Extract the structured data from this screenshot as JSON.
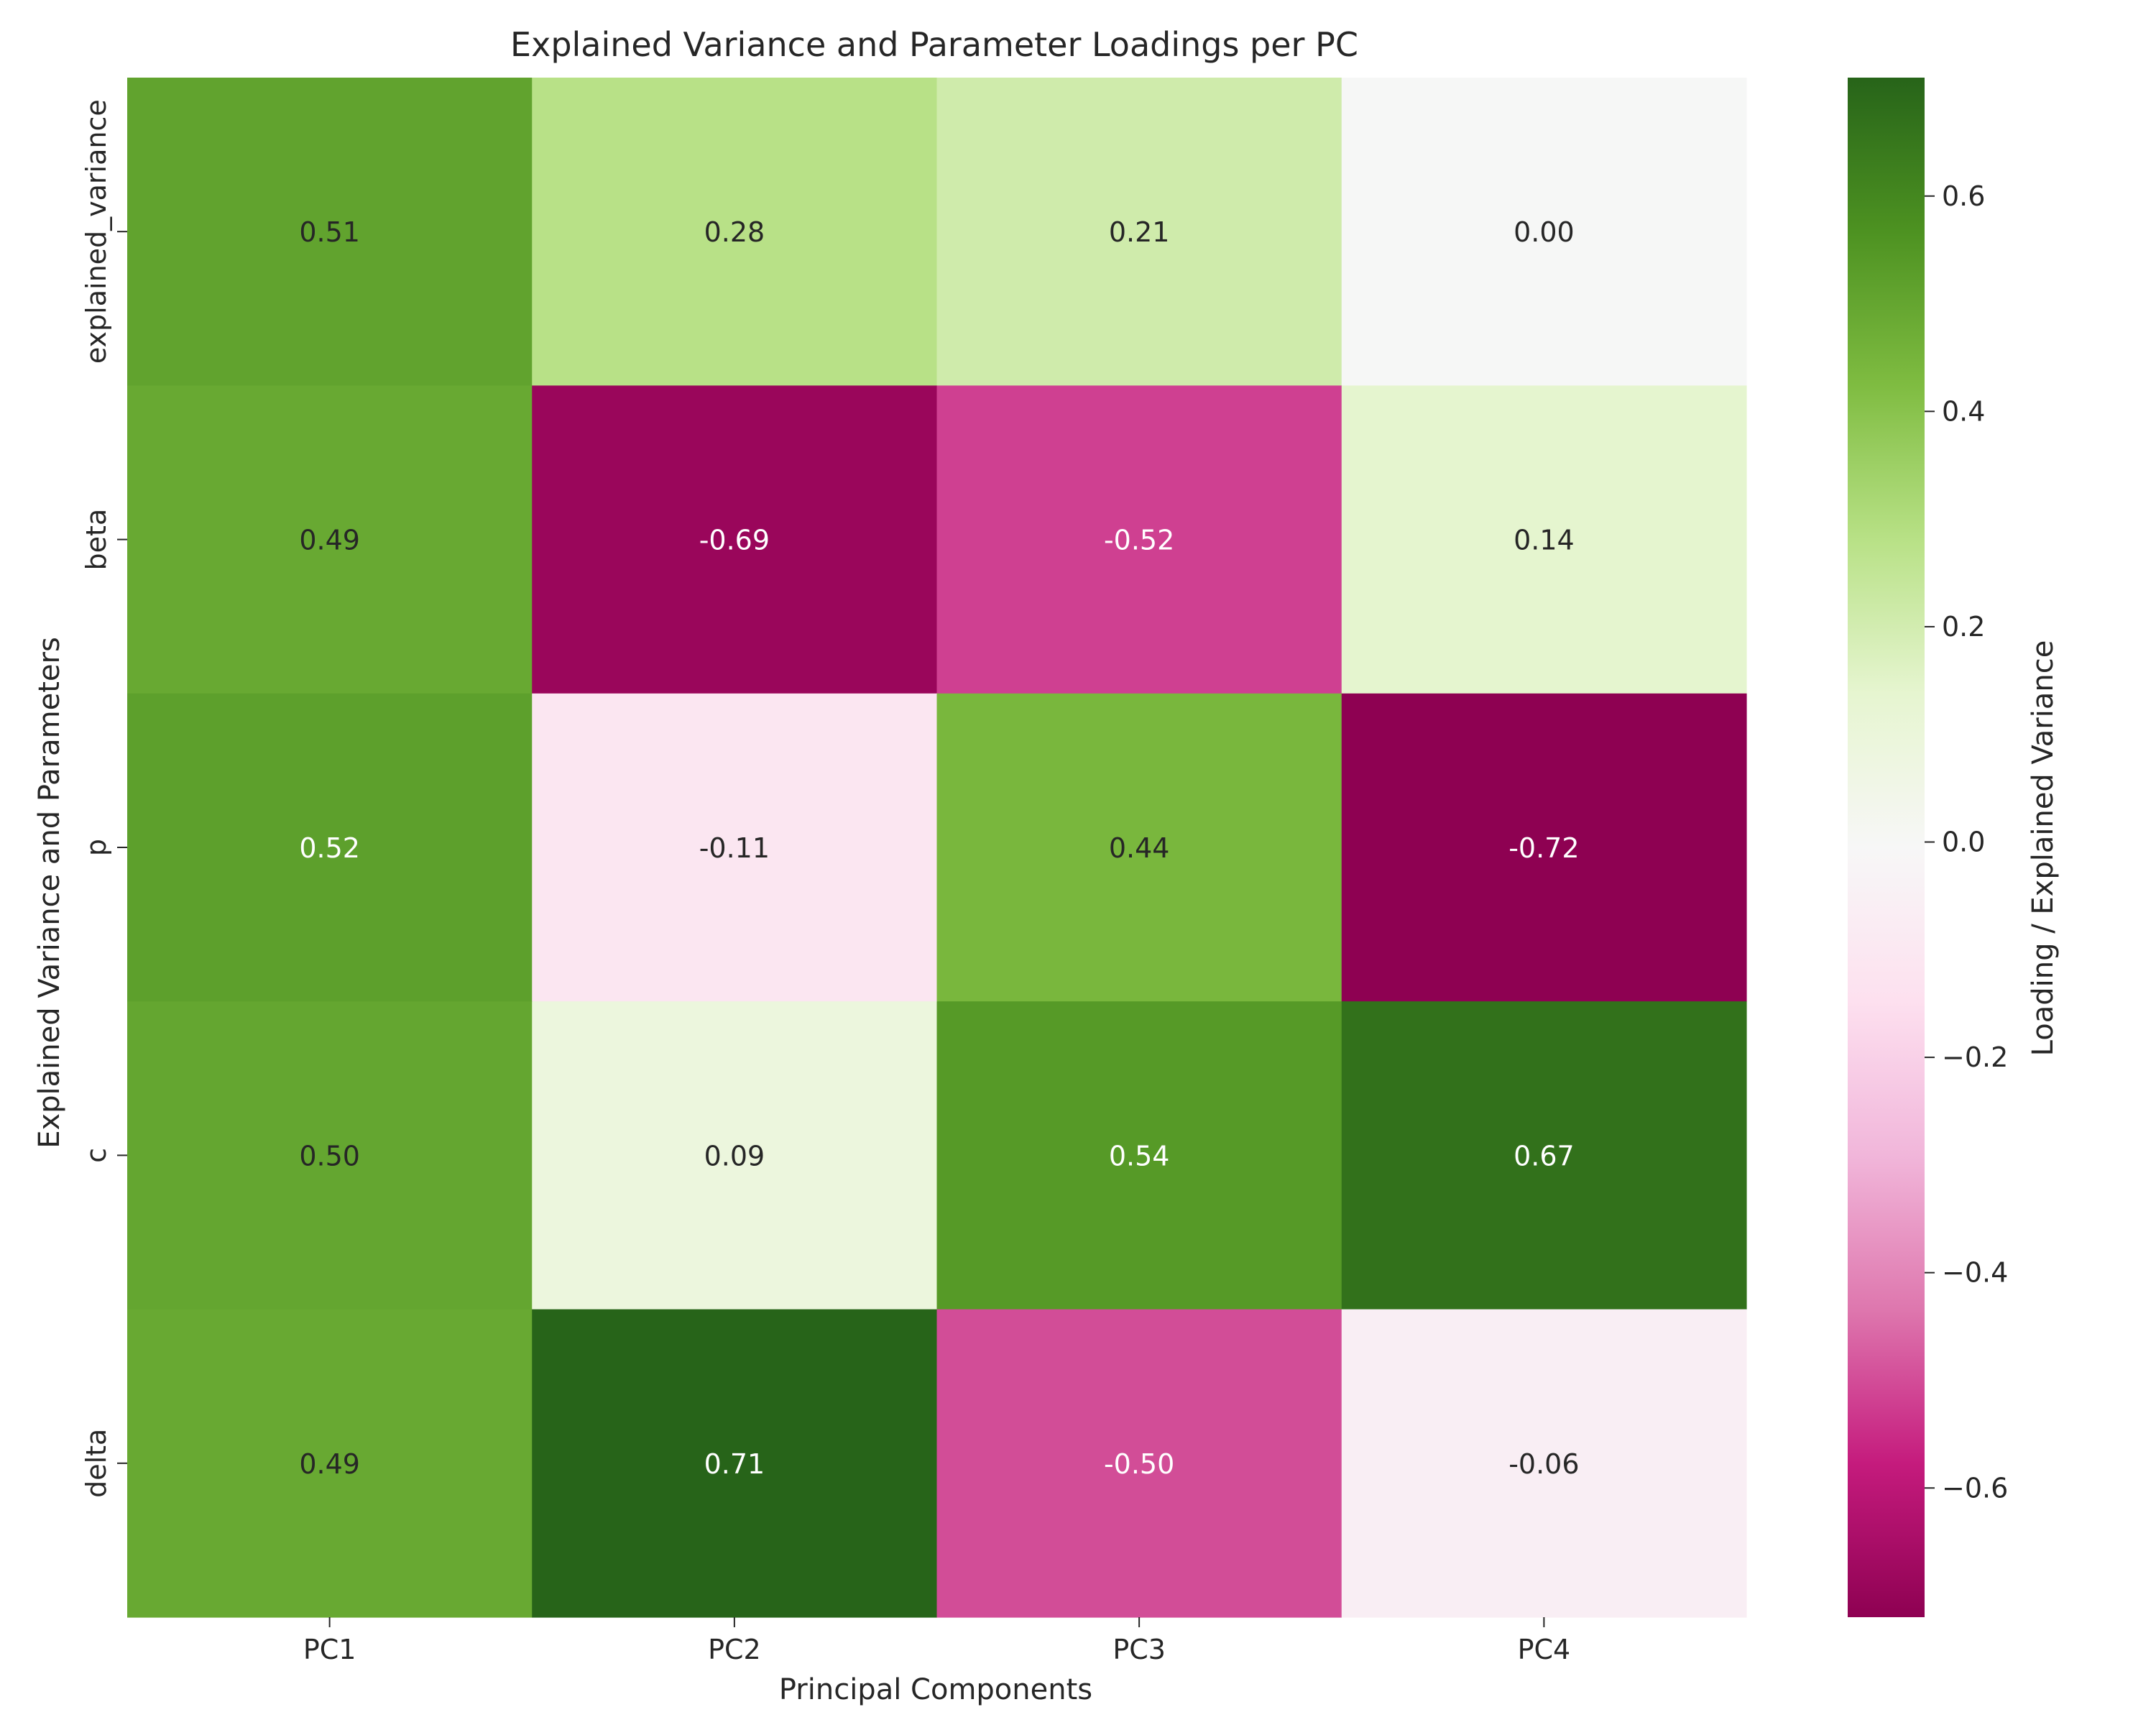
{
  "chart_data": {
    "type": "heatmap",
    "title": "Explained Variance and Parameter Loadings per PC",
    "xlabel": "Principal Components",
    "ylabel": "Explained Variance and Parameters",
    "colorbar_label": "Loading / Explained Variance",
    "columns": [
      "PC1",
      "PC2",
      "PC3",
      "PC4"
    ],
    "rows": [
      "explained_variance",
      "beta",
      "p",
      "c",
      "delta"
    ],
    "values": [
      [
        0.51,
        0.28,
        0.21,
        0.0
      ],
      [
        0.49,
        -0.69,
        -0.52,
        0.14
      ],
      [
        0.52,
        -0.11,
        0.44,
        -0.72
      ],
      [
        0.5,
        0.09,
        0.54,
        0.67
      ],
      [
        0.49,
        0.71,
        -0.5,
        -0.06
      ]
    ],
    "colormap": "PiYG",
    "vmin": -0.72,
    "vmax": 0.71,
    "colorbar_ticks": [
      0.6,
      0.4,
      0.2,
      0.0,
      -0.2,
      -0.4,
      -0.6
    ],
    "colorbar_tick_labels": [
      "0.6",
      "0.4",
      "0.2",
      "0.0",
      "−0.2",
      "−0.4",
      "−0.6"
    ]
  }
}
